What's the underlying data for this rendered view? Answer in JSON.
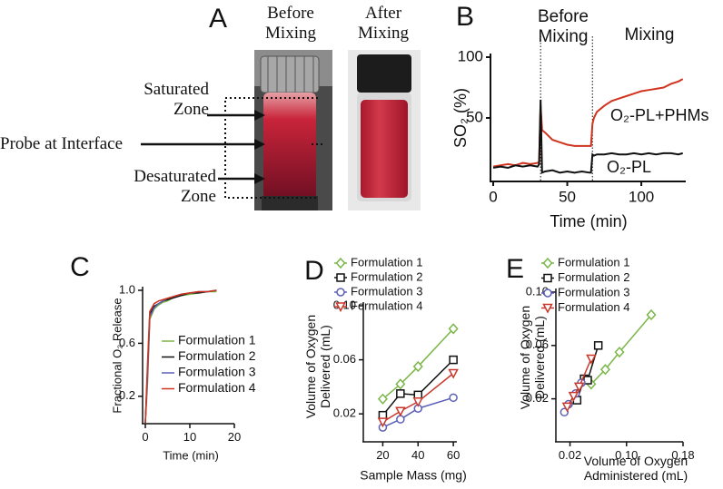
{
  "panel_a": {
    "label": "A",
    "before": "Before Mixing",
    "after": "After Mixing",
    "zones": [
      "Saturated Zone",
      "Probe at Interface",
      "Desaturated Zone"
    ]
  },
  "chart_data": [
    {
      "type": "line",
      "panel_label": "B",
      "x_label": "Time (min)",
      "y_label": "SO₂ (%)",
      "annotations": [
        "Before Mixing",
        "Mixing"
      ],
      "vlines": [
        32,
        67
      ],
      "xlim": [
        0,
        130
      ],
      "ylim": [
        0,
        100
      ],
      "xticks": [
        0,
        50,
        100
      ],
      "yticks": [
        50,
        100
      ],
      "x": [
        0,
        5,
        10,
        15,
        20,
        25,
        30,
        31,
        32,
        33,
        35,
        40,
        45,
        50,
        55,
        60,
        65,
        66,
        67,
        68,
        70,
        75,
        80,
        85,
        90,
        95,
        100,
        105,
        110,
        115,
        120,
        125,
        128
      ],
      "series": [
        {
          "name": "O₂-PL+PHMs",
          "color": "#d0341f",
          "values": [
            10,
            11,
            12,
            11,
            13,
            12,
            13,
            14,
            60,
            40,
            38,
            32,
            30,
            28,
            27,
            27,
            27,
            27,
            45,
            50,
            55,
            60,
            64,
            66,
            68,
            70,
            72,
            73,
            74,
            75,
            78,
            80,
            82
          ]
        },
        {
          "name": "O₂-PL",
          "color": "#111111",
          "values": [
            9,
            10,
            9,
            11,
            10,
            11,
            10,
            12,
            65,
            5,
            6,
            7,
            5,
            6,
            5,
            6,
            5,
            5,
            20,
            19,
            20,
            20,
            21,
            20,
            20,
            21,
            20,
            21,
            20,
            21,
            21,
            20,
            21
          ]
        }
      ]
    },
    {
      "type": "line",
      "panel_label": "C",
      "x_label": "Time (min)",
      "y_label": "Fractional O₂ Release",
      "xlim": [
        0,
        20
      ],
      "ylim": [
        0,
        1
      ],
      "xticks": [
        0,
        10,
        20
      ],
      "yticks": [
        0.2,
        0.6,
        {
          "value": 1,
          "label": "1.0"
        }
      ],
      "x": [
        0,
        0.5,
        1,
        2,
        3,
        4,
        5,
        6,
        8,
        10,
        12,
        14,
        16
      ],
      "series": [
        {
          "name": "Formulation 1",
          "color": "#7ab648",
          "values": [
            0,
            0.3,
            0.78,
            0.86,
            0.89,
            0.91,
            0.92,
            0.94,
            0.96,
            0.97,
            0.98,
            0.99,
            0.99
          ]
        },
        {
          "name": "Formulation 2",
          "color": "#111111",
          "values": [
            0,
            0.4,
            0.82,
            0.88,
            0.9,
            0.92,
            0.93,
            0.94,
            0.96,
            0.98,
            0.98,
            0.99,
            1
          ]
        },
        {
          "name": "Formulation 3",
          "color": "#5b5fb5",
          "values": [
            0,
            0.35,
            0.8,
            0.87,
            0.9,
            0.92,
            0.94,
            0.95,
            0.97,
            0.98,
            0.99,
            0.99,
            1
          ]
        },
        {
          "name": "Formulation 4",
          "color": "#d0341f",
          "values": [
            0,
            0.45,
            0.84,
            0.9,
            0.92,
            0.93,
            0.94,
            0.95,
            0.97,
            0.98,
            0.99,
            0.99,
            1
          ]
        }
      ]
    },
    {
      "type": "line",
      "panel_label": "D",
      "x_label": "Sample Mass (mg)",
      "y_label": "Volume of Oxygen Delivered (mL)",
      "xlim": [
        10,
        62
      ],
      "ylim": [
        0,
        0.1
      ],
      "xticks": [
        20,
        40,
        60
      ],
      "yticks": [
        0.02,
        0.06,
        {
          "value": 0.1,
          "label": "0.10"
        }
      ],
      "x": [
        20,
        30,
        40,
        60
      ],
      "series": [
        {
          "name": "Formulation 1",
          "color": "#7ab648",
          "marker": "diamond",
          "values": [
            0.031,
            0.042,
            0.055,
            0.083
          ]
        },
        {
          "name": "Formulation 2",
          "color": "#111111",
          "marker": "square",
          "values": [
            0.019,
            0.035,
            0.034,
            0.06
          ]
        },
        {
          "name": "Formulation 3",
          "color": "#5b5fb5",
          "marker": "circle",
          "values": [
            0.01,
            0.016,
            0.024,
            0.032
          ]
        },
        {
          "name": "Formulation 4",
          "color": "#c8372a",
          "marker": "triangle",
          "values": [
            0.014,
            0.022,
            0.029,
            0.05
          ]
        }
      ]
    },
    {
      "type": "line",
      "panel_label": "E",
      "x_label": "Volume of Oxygen Administered (mL)",
      "y_label": "Volume of Oxygen Delivered (mL)",
      "xlim": [
        0,
        0.18
      ],
      "ylim": [
        0,
        0.1
      ],
      "xticks": [
        0.02,
        {
          "value": 0.1,
          "label": "0.10"
        },
        0.18
      ],
      "yticks": [
        0.02,
        0.06,
        {
          "value": 0.1,
          "label": "0.10"
        }
      ],
      "series": [
        {
          "name": "Formulation 1",
          "color": "#7ab648",
          "marker": "diamond",
          "x": [
            0.05,
            0.07,
            0.09,
            0.135
          ],
          "values": [
            0.031,
            0.042,
            0.055,
            0.083
          ]
        },
        {
          "name": "Formulation 2",
          "color": "#111111",
          "marker": "square",
          "x": [
            0.03,
            0.04,
            0.045,
            0.06
          ],
          "values": [
            0.019,
            0.035,
            0.034,
            0.06
          ]
        },
        {
          "name": "Formulation 3",
          "color": "#5b5fb5",
          "marker": "circle",
          "x": [
            0.012,
            0.018,
            0.028,
            0.036
          ],
          "values": [
            0.01,
            0.016,
            0.024,
            0.032
          ]
        },
        {
          "name": "Formulation 4",
          "color": "#c8372a",
          "marker": "triangle",
          "x": [
            0.016,
            0.025,
            0.033,
            0.05
          ],
          "values": [
            0.014,
            0.022,
            0.029,
            0.05
          ]
        }
      ]
    }
  ]
}
